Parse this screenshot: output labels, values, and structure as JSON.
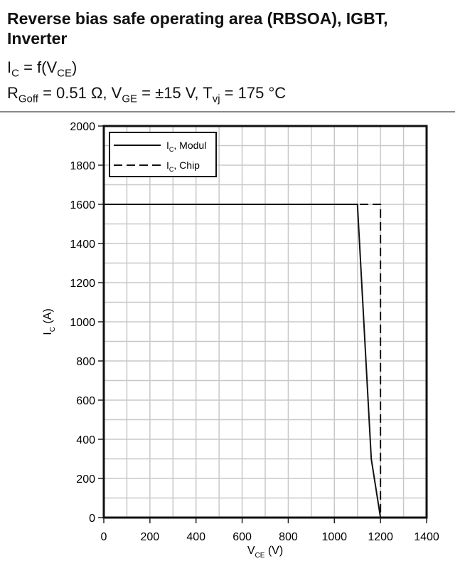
{
  "header": {
    "title": "Reverse bias safe operating area (RBSOA), IGBT, Inverter",
    "relation": {
      "lhs": "I",
      "lhs_sub": "C",
      "rhs": "= f(V",
      "rhs_sub": "CE",
      "close": ")"
    },
    "conditions": {
      "r": "R",
      "r_sub": "Goff",
      "r_val": "= 0.51 Ω, V",
      "v_sub": "GE",
      "v_val": "= ±15 V, T",
      "t_sub": "vj",
      "t_val": "= 175 °C"
    }
  },
  "chart_data": {
    "type": "line",
    "xlabel": "V",
    "xlabel_sub": "CE",
    "xlabel_unit": "(V)",
    "ylabel": "I",
    "ylabel_sub": "C",
    "ylabel_unit": "(A)",
    "xlim": [
      0,
      1400
    ],
    "ylim": [
      0,
      2000
    ],
    "xticks": [
      0,
      200,
      400,
      600,
      800,
      1000,
      1200,
      1400
    ],
    "yticks": [
      0,
      200,
      400,
      600,
      800,
      1000,
      1200,
      1400,
      1600,
      1800,
      2000
    ],
    "grid": true,
    "grid_step": {
      "x": 100,
      "y": 100
    },
    "legend_position": "top-left",
    "series": [
      {
        "name": "I",
        "name_sub": "C",
        "name_rest": ", Modul",
        "style": "solid",
        "x": [
          0,
          1100,
          1160,
          1200
        ],
        "y": [
          1600,
          1600,
          300,
          0
        ]
      },
      {
        "name": "I",
        "name_sub": "C",
        "name_rest": ", Chip",
        "style": "dashed",
        "x": [
          0,
          1200,
          1200
        ],
        "y": [
          1600,
          1600,
          0
        ]
      }
    ]
  }
}
